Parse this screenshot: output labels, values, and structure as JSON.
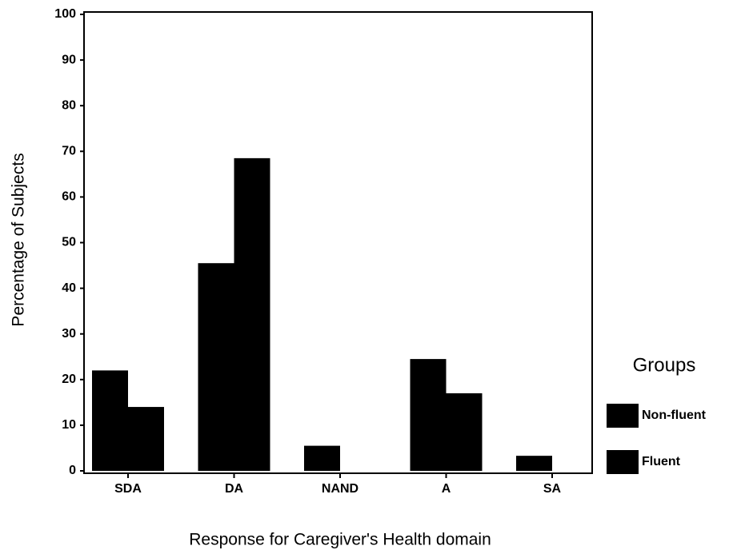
{
  "chart_data": {
    "type": "bar",
    "x_label": "Response for Caregiver's Health domain",
    "y_label": "Percentage of Subjects",
    "legend_title": "Groups",
    "categories": [
      "SDA",
      "DA",
      "NAND",
      "A",
      "SA"
    ],
    "series": [
      {
        "name": "Non-fluent",
        "color": "#000000",
        "values": [
          22,
          45.5,
          5.5,
          24.5,
          3.3
        ]
      },
      {
        "name": "Fluent",
        "color": "#000000",
        "values": [
          14,
          68.5,
          0,
          17,
          0
        ]
      }
    ],
    "ylim": [
      0,
      100
    ],
    "yticks": [
      0,
      10,
      20,
      30,
      40,
      50,
      60,
      70,
      80,
      90,
      100
    ],
    "legend": "right"
  }
}
